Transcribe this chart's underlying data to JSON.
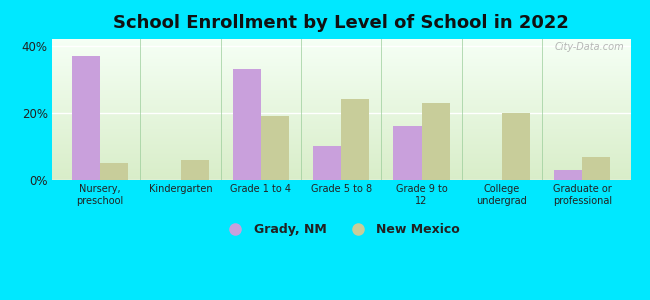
{
  "title": "School Enrollment by Level of School in 2022",
  "categories": [
    "Nursery,\npreschool",
    "Kindergarten",
    "Grade 1 to 4",
    "Grade 5 to 8",
    "Grade 9 to\n12",
    "College\nundergrad",
    "Graduate or\nprofessional"
  ],
  "grady_values": [
    37,
    0,
    33,
    10,
    16,
    0,
    3
  ],
  "nm_values": [
    5,
    6,
    19,
    24,
    23,
    20,
    7
  ],
  "grady_color": "#c9a0dc",
  "nm_color": "#c8cd9a",
  "ylim": [
    0,
    42
  ],
  "yticks": [
    0,
    20,
    40
  ],
  "ytick_labels": [
    "0%",
    "20%",
    "40%"
  ],
  "background_outer": "#00e8ff",
  "title_fontsize": 13,
  "legend_labels": [
    "Grady, NM",
    "New Mexico"
  ],
  "watermark": "City-Data.com"
}
